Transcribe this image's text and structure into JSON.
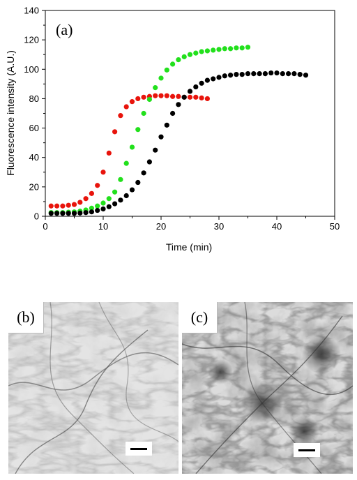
{
  "chart_data": {
    "type": "scatter",
    "panel_label": "(a)",
    "title": "",
    "xlabel": "Time (min)",
    "ylabel": "Fluorescence intensity (A.U.)",
    "xlim": [
      0,
      50
    ],
    "ylim": [
      0,
      140
    ],
    "xticks": [
      0,
      10,
      20,
      30,
      40,
      50
    ],
    "yticks": [
      0,
      20,
      40,
      60,
      80,
      100,
      120,
      140
    ],
    "grid": false,
    "legend": "none",
    "series": [
      {
        "color": "#e8140c",
        "x": [
          1,
          2,
          3,
          4,
          5,
          6,
          7,
          8,
          9,
          10,
          11,
          12,
          13,
          14,
          15,
          16,
          17,
          18,
          19,
          20,
          21,
          22,
          23,
          24,
          25,
          26,
          27,
          28
        ],
        "y": [
          7,
          7,
          7,
          7.5,
          8,
          9.5,
          12,
          15.5,
          21,
          30,
          43,
          57.5,
          68.5,
          74.5,
          78,
          80,
          81,
          81.5,
          82,
          82,
          82,
          81.5,
          81.5,
          81,
          81,
          81,
          80.5,
          80
        ]
      },
      {
        "color": "#22e01c",
        "x": [
          1,
          2,
          3,
          4,
          5,
          6,
          7,
          8,
          9,
          10,
          11,
          12,
          13,
          14,
          15,
          16,
          17,
          18,
          19,
          20,
          21,
          22,
          23,
          24,
          25,
          26,
          27,
          28,
          29,
          30,
          31,
          32,
          33,
          34,
          35
        ],
        "y": [
          2.5,
          2.5,
          2.5,
          2.8,
          3,
          3.5,
          4.3,
          5.5,
          7,
          9,
          12,
          16.5,
          25,
          36,
          47,
          59,
          70,
          79.5,
          87.5,
          94,
          99.5,
          103.5,
          106.5,
          108.5,
          110,
          111,
          112,
          112.5,
          113,
          113.5,
          114,
          114,
          114.5,
          114.5,
          115
        ]
      },
      {
        "color": "#000000",
        "x": [
          1,
          2,
          3,
          4,
          5,
          6,
          7,
          8,
          9,
          10,
          11,
          12,
          13,
          14,
          15,
          16,
          17,
          18,
          19,
          20,
          21,
          22,
          23,
          24,
          25,
          26,
          27,
          28,
          29,
          30,
          31,
          32,
          33,
          34,
          35,
          36,
          37,
          38,
          39,
          40,
          41,
          42,
          43,
          44,
          45
        ],
        "y": [
          2,
          2,
          2,
          2,
          2,
          2.2,
          2.5,
          3,
          4,
          5,
          6.5,
          8.5,
          11,
          14,
          18,
          23,
          29.5,
          37,
          45,
          54,
          62,
          70,
          76,
          81,
          85,
          88,
          90.5,
          92.5,
          93.5,
          94.5,
          95.5,
          96,
          96.5,
          96.5,
          97,
          97,
          97,
          97,
          97.5,
          97.5,
          97,
          97,
          97,
          96.5,
          96
        ]
      }
    ]
  },
  "micrographs": [
    {
      "label": "(b)"
    },
    {
      "label": "(c)"
    }
  ]
}
